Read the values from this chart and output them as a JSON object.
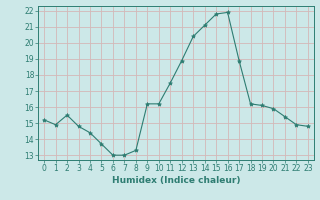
{
  "x": [
    0,
    1,
    2,
    3,
    4,
    5,
    6,
    7,
    8,
    9,
    10,
    11,
    12,
    13,
    14,
    15,
    16,
    17,
    18,
    19,
    20,
    21,
    22,
    23
  ],
  "y": [
    15.2,
    14.9,
    15.5,
    14.8,
    14.4,
    13.7,
    13.0,
    13.0,
    13.3,
    16.2,
    16.2,
    17.5,
    18.9,
    20.4,
    21.1,
    21.8,
    21.9,
    18.9,
    16.2,
    16.1,
    15.9,
    15.4,
    14.9,
    14.8
  ],
  "line_color": "#2e7d72",
  "marker": "*",
  "marker_size": 3,
  "bg_color": "#cce8e8",
  "grid_major_color": "#b8d8d8",
  "grid_minor_color": "#d8ecec",
  "xlabel": "Humidex (Indice chaleur)",
  "ylabel": "",
  "ylim": [
    12.7,
    22.3
  ],
  "xlim": [
    -0.5,
    23.5
  ],
  "yticks": [
    13,
    14,
    15,
    16,
    17,
    18,
    19,
    20,
    21,
    22
  ],
  "xticks": [
    0,
    1,
    2,
    3,
    4,
    5,
    6,
    7,
    8,
    9,
    10,
    11,
    12,
    13,
    14,
    15,
    16,
    17,
    18,
    19,
    20,
    21,
    22,
    23
  ],
  "label_fontsize": 6.5,
  "tick_fontsize": 5.5
}
